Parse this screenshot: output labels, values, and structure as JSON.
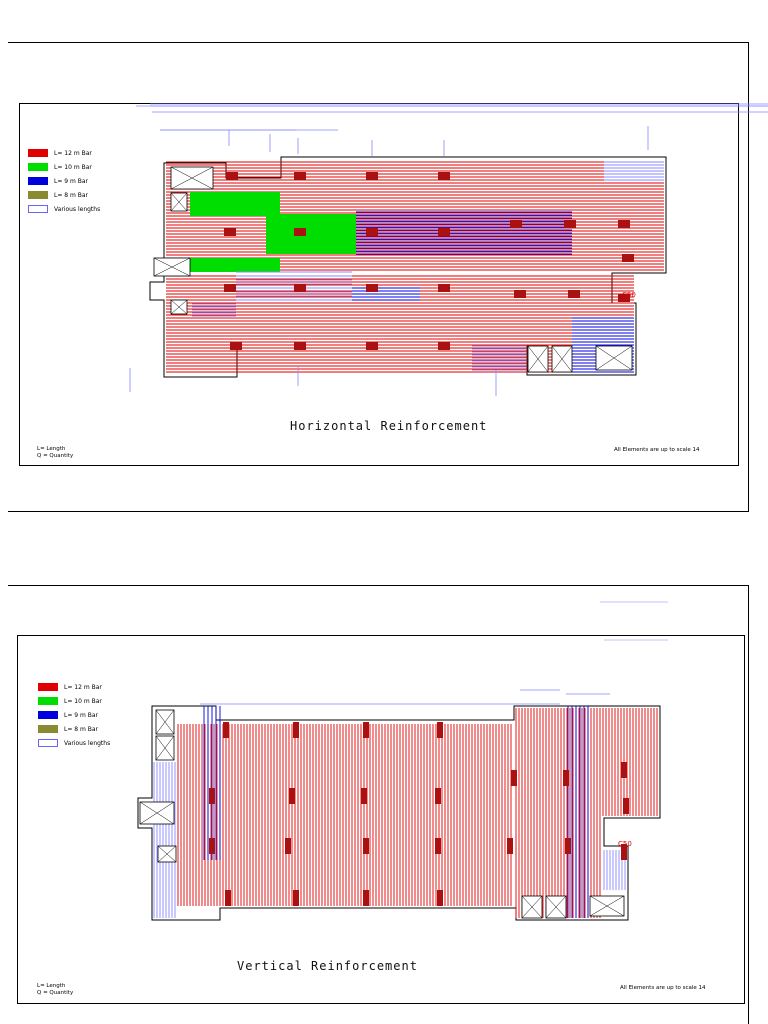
{
  "legend": {
    "items": [
      {
        "label": "L= 12 m Bar",
        "color": "#e00000"
      },
      {
        "label": "L= 10 m Bar",
        "color": "#00dd00"
      },
      {
        "label": "L= 9 m Bar",
        "color": "#0000dd"
      },
      {
        "label": "L= 8 m Bar",
        "color": "#8a8a30"
      },
      {
        "label": "Various lengths",
        "color": "#8888ff"
      }
    ]
  },
  "sheet_top": {
    "title": "Horizontal Reinforcement",
    "footnote_line1": "L= Length",
    "footnote_line2": "Q = Quantity",
    "scale_note": "All Elements are up to scale 14",
    "column_label": "C50"
  },
  "sheet_bottom": {
    "title": "Vertical Reinforcement",
    "footnote_line1": "L= Length",
    "footnote_line2": "Q = Quantity",
    "scale_note": "All Elements are up to scale 14",
    "column_label": "C50"
  }
}
